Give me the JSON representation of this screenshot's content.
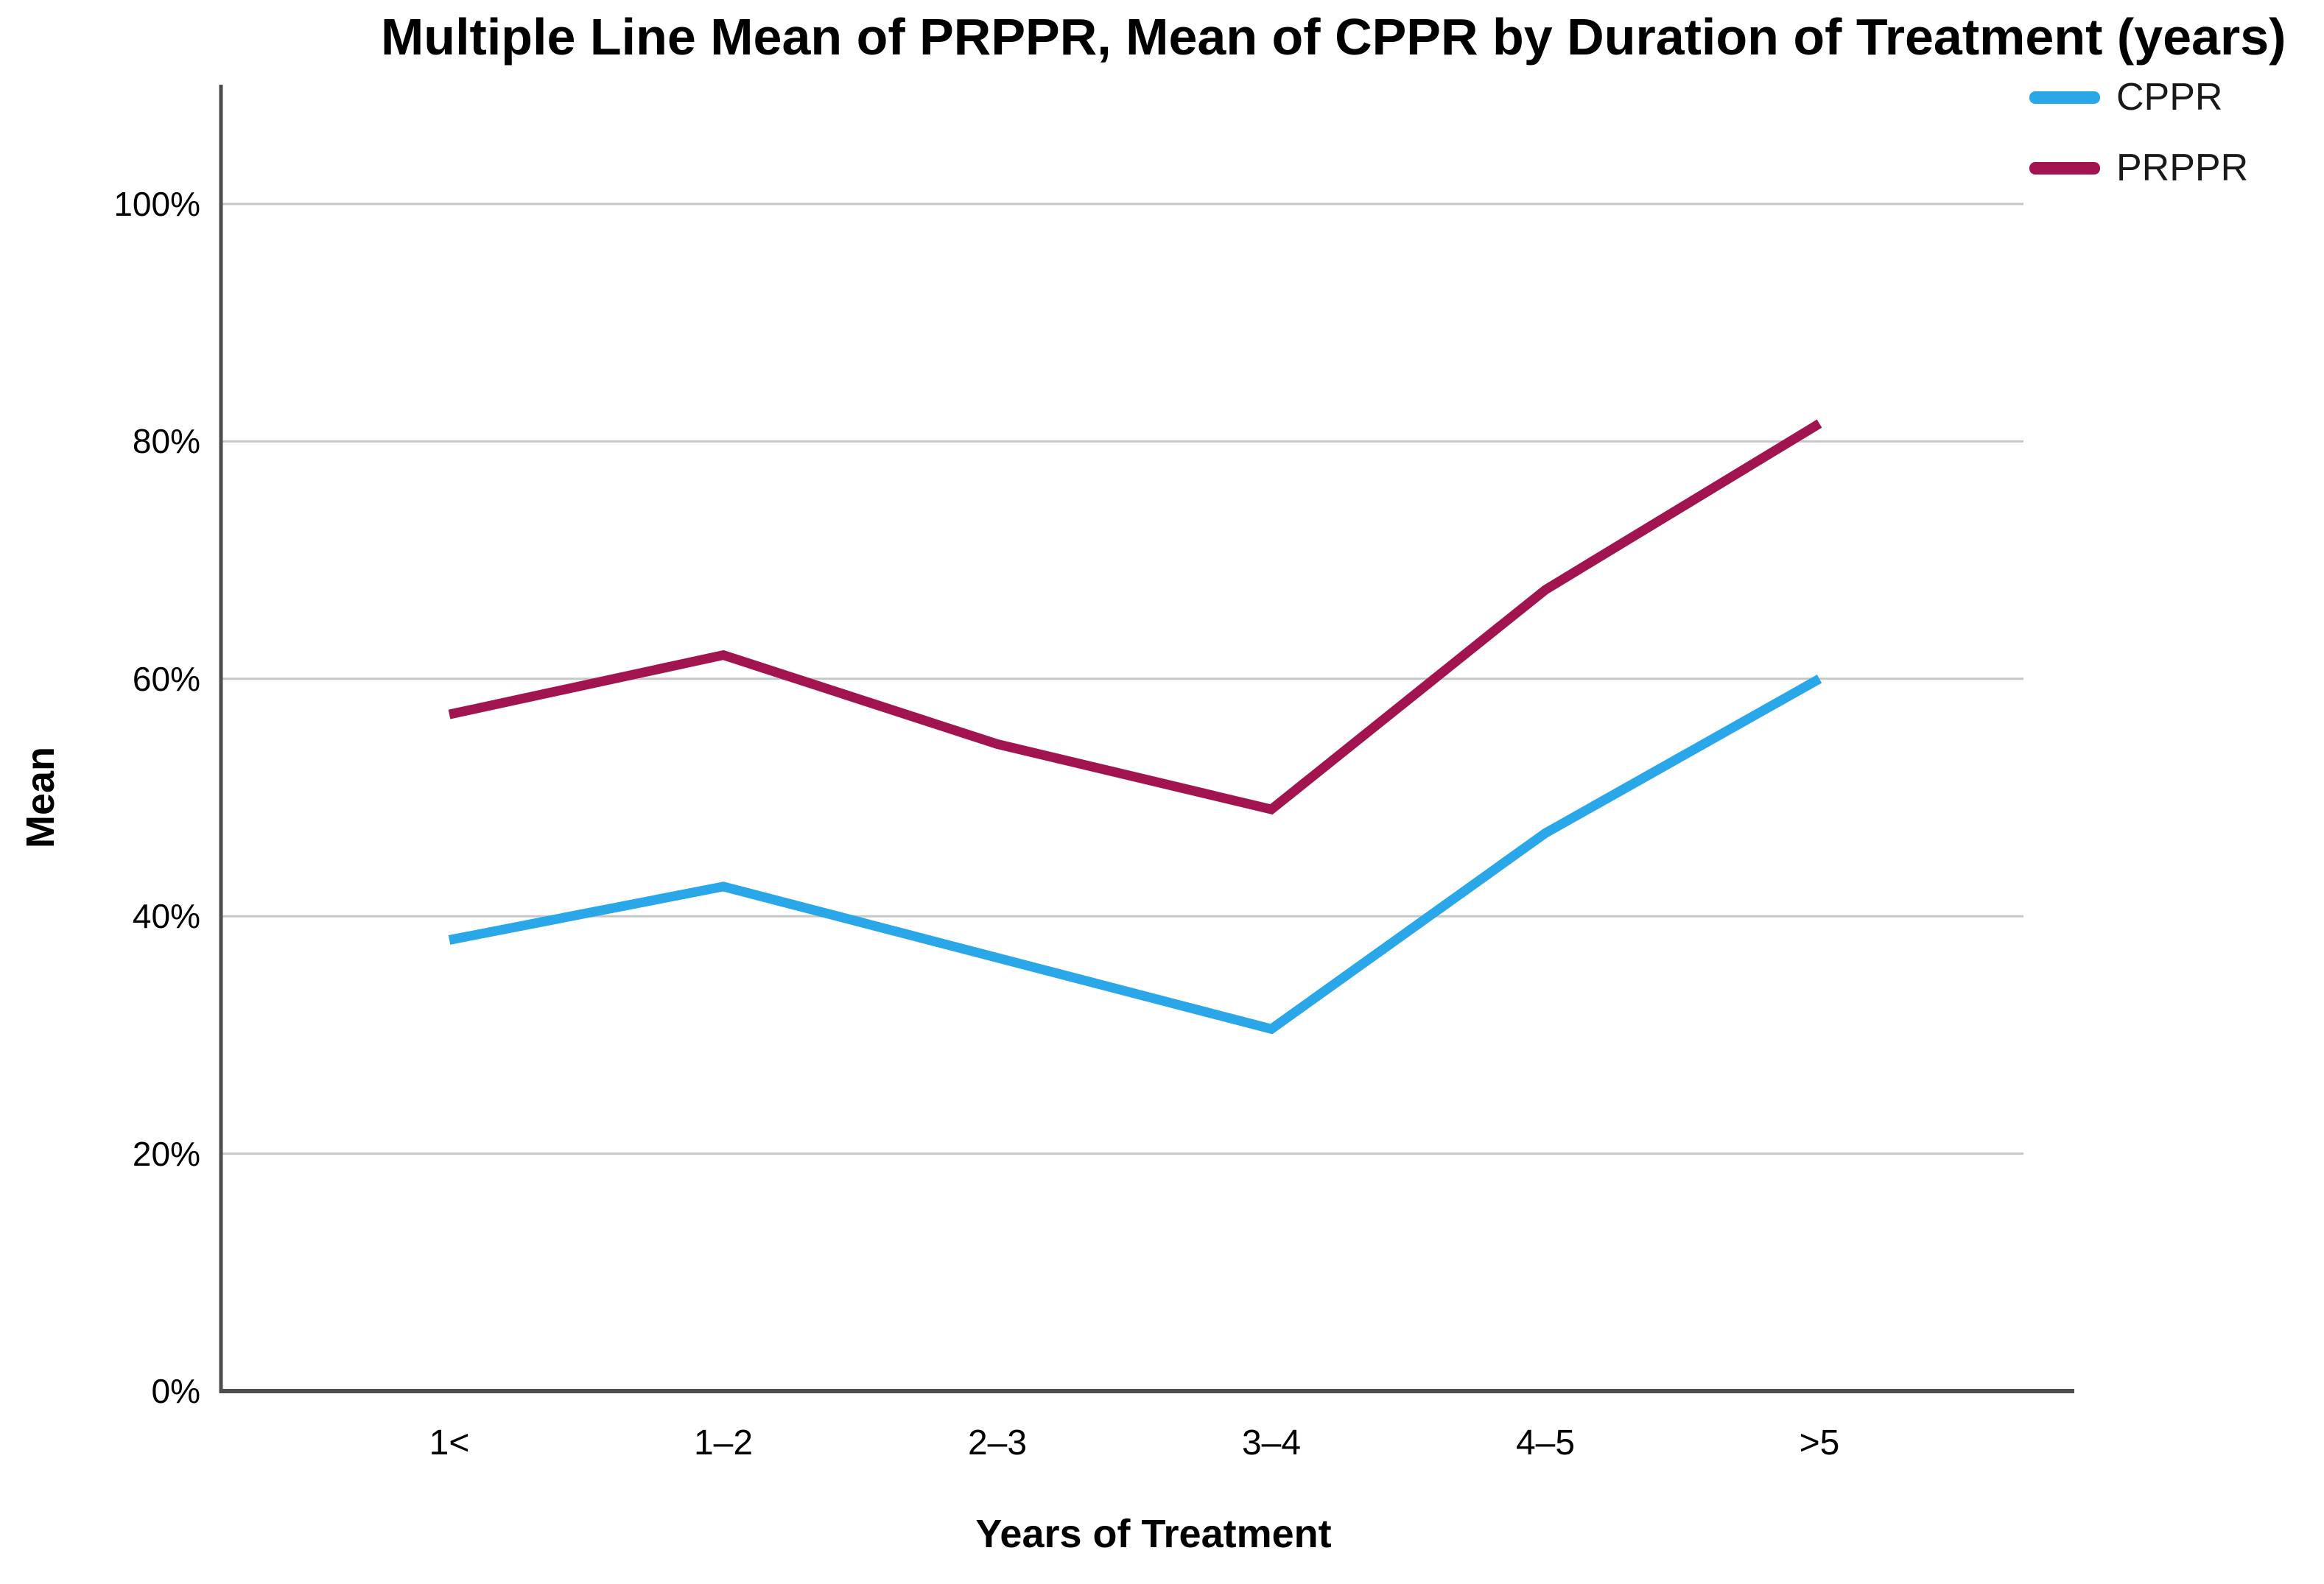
{
  "chart_data": {
    "type": "line",
    "title": "Multiple Line Mean of PRPPR, Mean of CPPR by Duration of Treatment (years)",
    "xlabel": "Years of Treatment",
    "ylabel": "Mean",
    "categories": [
      "1<",
      "1–2",
      "2–3",
      "3–4",
      "4–5",
      ">5"
    ],
    "series": [
      {
        "name": "CPPR",
        "color": "#29A7E8",
        "values": [
          38,
          42.5,
          36.5,
          30.5,
          47,
          60
        ]
      },
      {
        "name": "PRPPR",
        "color": "#A21450",
        "values": [
          57,
          62,
          54.5,
          49,
          67.5,
          81.5
        ]
      }
    ],
    "yticks": [
      {
        "value": 0,
        "label": "0%"
      },
      {
        "value": 20,
        "label": "20%"
      },
      {
        "value": 40,
        "label": "40%"
      },
      {
        "value": 60,
        "label": "60%"
      },
      {
        "value": 80,
        "label": "80%"
      },
      {
        "value": 100,
        "label": "100%"
      }
    ],
    "ylim": [
      0,
      110
    ],
    "grid": "horizontal",
    "legend_position": "top-right",
    "colors": {
      "cppr_line": "#29A7E8",
      "prppr_line": "#A21450",
      "gridline": "#C7C7C7",
      "axis": "#4D4D4D",
      "text": "#000000",
      "background": "#FFFFFF"
    }
  }
}
